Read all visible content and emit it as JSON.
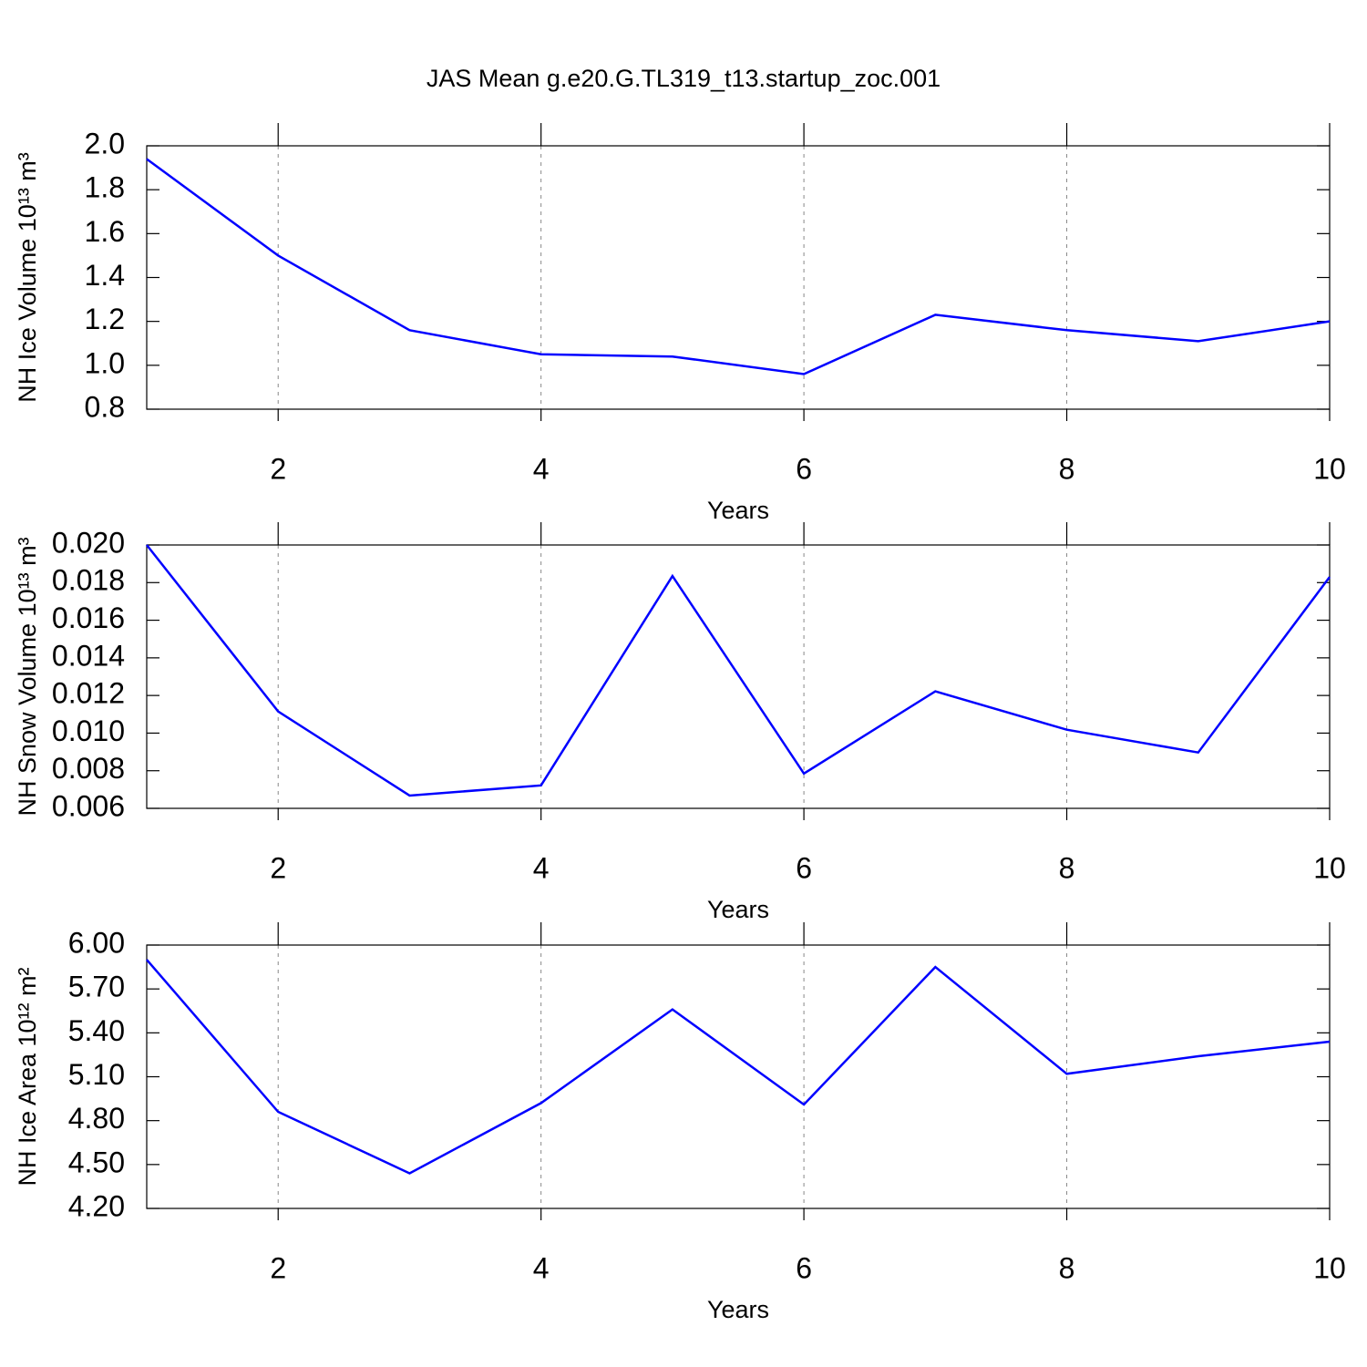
{
  "chart_data": [
    {
      "type": "line",
      "title": "JAS Mean g.e20.G.TL319_t13.startup_zoc.001",
      "ylabel": "NH Ice Volume 10¹³ m³",
      "xlabel": "Years",
      "x": [
        1,
        2,
        3,
        4,
        5,
        6,
        7,
        8,
        9,
        10
      ],
      "values": [
        1.94,
        1.5,
        1.16,
        1.05,
        1.04,
        0.96,
        1.23,
        1.16,
        1.11,
        1.2
      ],
      "color": "#0000ff",
      "xlim": [
        1,
        10
      ],
      "xticks": [
        2,
        4,
        6,
        8,
        10
      ],
      "ylim": [
        0.8,
        2.0
      ],
      "yticks": [
        0.8,
        {
          "value": 1.0,
          "label": "1.0"
        },
        1.2,
        1.4,
        1.6,
        1.8,
        {
          "value": 2.0,
          "label": "2.0"
        }
      ],
      "grid": true
    },
    {
      "type": "line",
      "ylabel": "NH Snow Volume 10¹³ m³",
      "xlabel": "Years",
      "x": [
        1,
        2,
        3,
        4,
        5,
        6,
        7,
        8,
        9,
        10
      ],
      "values": [
        0.02,
        0.01115,
        0.00668,
        0.00722,
        0.01835,
        0.00785,
        0.01222,
        0.01018,
        0.00897,
        0.0183
      ],
      "color": "#0000ff",
      "xlim": [
        1,
        10
      ],
      "xticks": [
        2,
        4,
        6,
        8,
        10
      ],
      "ylim": [
        0.006,
        0.02
      ],
      "yticks": [
        {
          "value": 0.006,
          "label": "0.006"
        },
        {
          "value": 0.008,
          "label": "0.008"
        },
        {
          "value": 0.01,
          "label": "0.010"
        },
        {
          "value": 0.012,
          "label": "0.012"
        },
        {
          "value": 0.014,
          "label": "0.014"
        },
        {
          "value": 0.016,
          "label": "0.016"
        },
        {
          "value": 0.018,
          "label": "0.018"
        },
        {
          "value": 0.02,
          "label": "0.020"
        }
      ],
      "grid": true
    },
    {
      "type": "line",
      "ylabel": "NH Ice Area 10¹² m²",
      "xlabel": "Years",
      "x": [
        1,
        2,
        3,
        4,
        5,
        6,
        7,
        8,
        9,
        10
      ],
      "values": [
        5.9,
        4.86,
        4.44,
        4.92,
        5.56,
        4.91,
        5.85,
        5.12,
        5.24,
        5.34
      ],
      "color": "#0000ff",
      "xlim": [
        1,
        10
      ],
      "xticks": [
        2,
        4,
        6,
        8,
        10
      ],
      "ylim": [
        4.2,
        6.0
      ],
      "yticks": [
        {
          "value": 4.2,
          "label": "4.20"
        },
        {
          "value": 4.5,
          "label": "4.50"
        },
        {
          "value": 4.8,
          "label": "4.80"
        },
        {
          "value": 5.1,
          "label": "5.10"
        },
        {
          "value": 5.4,
          "label": "5.40"
        },
        {
          "value": 5.7,
          "label": "5.70"
        },
        {
          "value": 6.0,
          "label": "6.00"
        }
      ],
      "grid": true
    }
  ]
}
